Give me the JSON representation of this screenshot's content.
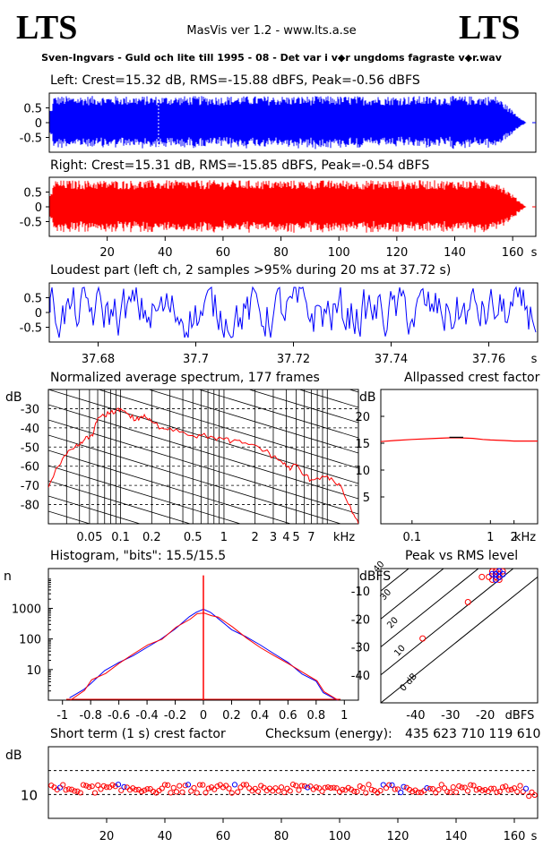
{
  "header": {
    "logo_left": "LTS",
    "logo_right": "LTS",
    "version": "MasVis ver 1.2 - www.lts.a.se",
    "filename": "Sven-Ingvars - Guld och lite till 1995 - 08 - Det var i v◆r ungdoms fagraste v◆r.wav"
  },
  "colors": {
    "left": "#0000ff",
    "right": "#ff0000",
    "grid": "#000000"
  },
  "chart_data": [
    {
      "id": "left-waveform",
      "type": "area",
      "title": "Left: Crest=15.32 dB, RMS=-15.88 dBFS, Peak=-0.56 dBFS",
      "y_ticks": [
        "0.5",
        "0",
        "-0.5"
      ],
      "ylim": [
        -1,
        1
      ],
      "xlim": [
        0,
        168
      ],
      "marker_x": 37.72,
      "envelope_peak": 0.9,
      "color": "#0000ff"
    },
    {
      "id": "right-waveform",
      "type": "area",
      "title": "Right: Crest=15.31 dB, RMS=-15.85 dBFS, Peak=-0.54 dBFS",
      "y_ticks": [
        "0.5",
        "0",
        "-0.5"
      ],
      "ylim": [
        -1,
        1
      ],
      "xlim": [
        0,
        168
      ],
      "envelope_peak": 0.9,
      "x_ticks": [
        "20",
        "40",
        "60",
        "80",
        "100",
        "120",
        "140",
        "160"
      ],
      "x_unit": "s",
      "color": "#ff0000"
    },
    {
      "id": "loudest-part",
      "type": "line",
      "title": "Loudest part (left  ch, 2 samples >95% during 20 ms at 37.72 s)",
      "y_ticks": [
        "0.5",
        "0",
        "-0.5"
      ],
      "ylim": [
        -1,
        1
      ],
      "xlim": [
        37.67,
        37.77
      ],
      "x_ticks": [
        "37.68",
        "37.7",
        "37.72",
        "37.74",
        "37.76"
      ],
      "x_unit": "s",
      "color": "#0000ff"
    },
    {
      "id": "spectrum",
      "type": "line",
      "title": "Normalized average spectrum, 177 frames",
      "ylabel": "dB",
      "y_ticks": [
        "-30",
        "-40",
        "-50",
        "-60",
        "-70",
        "-80"
      ],
      "ylim": [
        -90,
        -20
      ],
      "x_scale": "log",
      "xlim": [
        0.02,
        20
      ],
      "x_ticks": [
        "0.05",
        "0.1",
        "0.2",
        "0.5",
        "1",
        "2",
        "3",
        "4",
        "5",
        "7"
      ],
      "x_unit": "kHz",
      "x": [
        0.02,
        0.025,
        0.03,
        0.035,
        0.04,
        0.045,
        0.05,
        0.055,
        0.06,
        0.07,
        0.08,
        0.09,
        0.1,
        0.12,
        0.14,
        0.16,
        0.18,
        0.2,
        0.25,
        0.3,
        0.4,
        0.5,
        0.6,
        0.8,
        1,
        1.2,
        1.5,
        2,
        2.5,
        3,
        3.5,
        4,
        4.5,
        5,
        6,
        7,
        8,
        10,
        12,
        14,
        16,
        18,
        20
      ],
      "values": [
        -71,
        -60,
        -54,
        -51,
        -49,
        -46,
        -45,
        -42,
        -35,
        -34,
        -32,
        -31,
        -30,
        -33,
        -36,
        -34,
        -35,
        -37,
        -40,
        -40,
        -42,
        -44,
        -44,
        -45,
        -46,
        -47,
        -48,
        -49,
        -52,
        -55,
        -57,
        -60,
        -61,
        -59,
        -65,
        -67,
        -66,
        -65,
        -69,
        -72,
        -80,
        -85,
        -90
      ],
      "color": "#ff0000"
    },
    {
      "id": "allpassed-crest",
      "type": "line",
      "title": "Allpassed crest factor",
      "ylabel": "dB",
      "y_ticks": [
        "20",
        "15",
        "10",
        "5"
      ],
      "ylim": [
        0,
        25
      ],
      "x_scale": "log",
      "xlim": [
        0.04,
        4
      ],
      "x_ticks": [
        "0.1",
        "1",
        "2"
      ],
      "x_unit": "kHz",
      "x": [
        0.04,
        0.06,
        0.1,
        0.2,
        0.3,
        0.4,
        0.6,
        0.8,
        1,
        1.5,
        2,
        3,
        4
      ],
      "values": [
        15.3,
        15.5,
        15.7,
        15.9,
        16.0,
        16.0,
        15.9,
        15.7,
        15.6,
        15.5,
        15.4,
        15.4,
        15.4
      ],
      "color": "#ff0000"
    },
    {
      "id": "histogram",
      "type": "line",
      "title": "Histogram, \"bits\": 15.5/15.5",
      "ylabel": "n",
      "y_scale": "log",
      "y_ticks": [
        "1000",
        "100",
        "10"
      ],
      "ylim": [
        1,
        20000
      ],
      "xlim": [
        -1.1,
        1.1
      ],
      "x_ticks": [
        "-1",
        "-0.8",
        "-0.6",
        "-0.4",
        "-0.2",
        "0",
        "0.2",
        "0.4",
        "0.6",
        "0.8",
        "1"
      ],
      "x": [
        -0.95,
        -0.85,
        -0.8,
        -0.7,
        -0.6,
        -0.5,
        -0.4,
        -0.3,
        -0.2,
        -0.1,
        -0.05,
        0,
        0.05,
        0.1,
        0.2,
        0.3,
        0.4,
        0.5,
        0.6,
        0.7,
        0.8,
        0.85,
        0.95
      ],
      "values": [
        1,
        2,
        4,
        8,
        15,
        28,
        55,
        110,
        230,
        480,
        650,
        800,
        650,
        480,
        230,
        110,
        55,
        28,
        15,
        8,
        4,
        2,
        1
      ],
      "spike_at_zero": 12000,
      "series": [
        {
          "name": "left",
          "color": "#0000ff"
        },
        {
          "name": "right",
          "color": "#ff0000"
        }
      ]
    },
    {
      "id": "peak-vs-rms",
      "type": "scatter",
      "title": "Peak vs RMS level",
      "ylabel": "dBFS",
      "xlabel": "dBFS",
      "y_ticks": [
        "-10",
        "-20",
        "-30",
        "-40"
      ],
      "x_ticks": [
        "-40",
        "-30",
        "-20"
      ],
      "xlim": [
        -50,
        -5
      ],
      "ylim": [
        -50,
        -2
      ],
      "crest_lines": [
        "0 dB",
        "10",
        "20",
        "30",
        "40"
      ],
      "points_right": [
        [
          -25,
          -14
        ],
        [
          -21,
          -5
        ],
        [
          -38,
          -27
        ],
        [
          -18,
          -3
        ],
        [
          -17,
          -4
        ],
        [
          -16,
          -5
        ],
        [
          -18,
          -6
        ],
        [
          -17,
          -3
        ],
        [
          -16,
          -4
        ],
        [
          -15,
          -3
        ],
        [
          -17,
          -5
        ],
        [
          -16,
          -6
        ],
        [
          -19,
          -5
        ]
      ],
      "points_left": [
        [
          -17,
          -4
        ],
        [
          -16,
          -3
        ],
        [
          -18,
          -4
        ],
        [
          -16,
          -5
        ],
        [
          -15,
          -4
        ],
        [
          -17,
          -6
        ]
      ]
    },
    {
      "id": "short-term-crest",
      "type": "scatter",
      "title": "Short term (1 s) crest factor",
      "ylabel": "dB",
      "y_ticks": [
        "10"
      ],
      "ylim": [
        5,
        20
      ],
      "xlim": [
        0,
        168
      ],
      "x_ticks": [
        "20",
        "40",
        "60",
        "80",
        "100",
        "120",
        "140",
        "160"
      ],
      "x_unit": "s",
      "dashed_levels": [
        15,
        10
      ],
      "color": "#ff0000"
    }
  ],
  "checksum": {
    "label": "Checksum (energy):",
    "value": "435 623 710 119 610"
  }
}
